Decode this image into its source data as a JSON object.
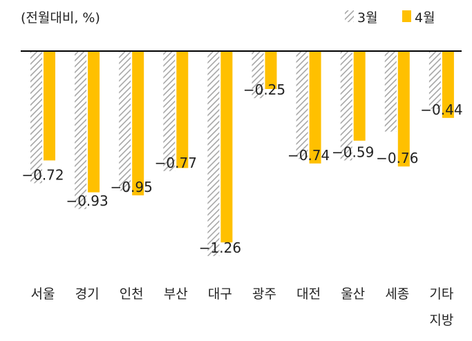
{
  "chart_data": {
    "type": "bar",
    "unit_label": "(전월대비, %)",
    "categories": [
      "서울",
      "경기",
      "인천",
      "부산",
      "대구",
      "광주",
      "대전",
      "울산",
      "세종",
      "기타 지방"
    ],
    "series": [
      {
        "name": "3월",
        "fill": "hatched-gray",
        "color": "#a6a6a6",
        "values": [
          -0.87,
          -1.04,
          -0.92,
          -0.79,
          -1.35,
          -0.31,
          -0.71,
          -0.72,
          -0.53,
          -0.38
        ]
      },
      {
        "name": "4월",
        "fill": "solid",
        "color": "#ffc000",
        "values": [
          -0.72,
          -0.93,
          -0.95,
          -0.77,
          -1.26,
          -0.25,
          -0.74,
          -0.59,
          -0.76,
          -0.44
        ]
      }
    ],
    "data_labels": [
      "−0.72",
      "−0.93",
      "−0.95",
      "−0.77",
      "−1.26",
      "−0.25",
      "−0.74",
      "−0.59",
      "−0.76",
      "−0.44"
    ],
    "ylim": [
      -1.35,
      0
    ],
    "grid": false,
    "legend_position": "top-right"
  }
}
